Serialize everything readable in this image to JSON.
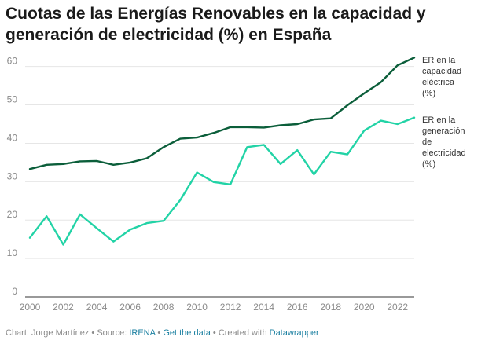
{
  "chart_data": {
    "type": "line",
    "title": "Cuotas de las Energías Renovables en la capacidad y generación de electricidad (%) en España",
    "x": [
      2000,
      2001,
      2002,
      2003,
      2004,
      2005,
      2006,
      2007,
      2008,
      2009,
      2010,
      2011,
      2012,
      2013,
      2014,
      2015,
      2016,
      2017,
      2018,
      2019,
      2020,
      2021,
      2022,
      2023
    ],
    "xticks": [
      "2000",
      "2002",
      "2004",
      "2006",
      "2008",
      "2010",
      "2012",
      "2014",
      "2016",
      "2018",
      "2020",
      "2022"
    ],
    "yticks": [
      "0",
      "10",
      "20",
      "30",
      "40",
      "50",
      "60"
    ],
    "ylim": [
      0,
      63
    ],
    "xlim": [
      2000,
      2023
    ],
    "grid": true,
    "series": [
      {
        "name": "ER en la capacidad eléctrica (%)",
        "label_lines": [
          "ER en la",
          "capacidad",
          "eléctrica",
          "(%)"
        ],
        "color": "#0b5e3a",
        "values": [
          33.3,
          34.4,
          34.6,
          35.3,
          35.4,
          34.4,
          35.0,
          36.1,
          39.0,
          41.2,
          41.5,
          42.7,
          44.2,
          44.2,
          44.1,
          44.7,
          45.0,
          46.2,
          46.5,
          49.9,
          53.0,
          55.9,
          60.3,
          62.3
        ]
      },
      {
        "name": "ER en la generación de electricidad (%)",
        "label_lines": [
          "ER en la",
          "generación",
          "de",
          "electricidad",
          "(%)"
        ],
        "color": "#22d3a6",
        "values": [
          15.4,
          21.0,
          13.6,
          21.5,
          17.9,
          14.4,
          17.5,
          19.2,
          19.8,
          25.2,
          32.4,
          29.9,
          29.3,
          39.0,
          39.6,
          34.6,
          38.2,
          31.9,
          37.8,
          37.1,
          43.3,
          45.9,
          45.0,
          46.7
        ]
      }
    ]
  },
  "footer": {
    "chart_by": "Chart: Jorge Martínez • Source:",
    "source_link": "IRENA",
    "sep1": "•",
    "get_data": "Get the data",
    "created": "• Created with",
    "tool": "Datawrapper"
  }
}
